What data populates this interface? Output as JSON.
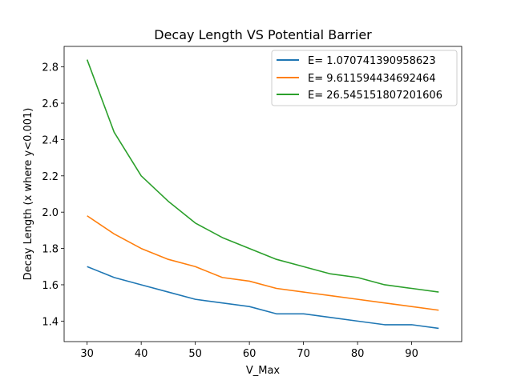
{
  "chart_data": {
    "type": "line",
    "title": "Decay Length VS Potential Barrier",
    "xlabel": "V_Max",
    "ylabel": "Decay Length (x where y<0.001)",
    "x": [
      30,
      35,
      40,
      45,
      50,
      55,
      60,
      65,
      70,
      75,
      80,
      85,
      90,
      95
    ],
    "xlim": [
      25.75,
      99.25
    ],
    "ylim": [
      1.287,
      2.913
    ],
    "xticks": [
      30,
      40,
      50,
      60,
      70,
      80,
      90
    ],
    "yticks": [
      1.4,
      1.6,
      1.8,
      2.0,
      2.2,
      2.4,
      2.6,
      2.8
    ],
    "ytick_labels": [
      "1.4",
      "1.6",
      "1.8",
      "2.0",
      "2.2",
      "2.4",
      "2.6",
      "2.8"
    ],
    "grid": false,
    "legend_position": "top-right",
    "series": [
      {
        "name": "E= 1.070741390958623",
        "color": "#1f77b4",
        "values": [
          1.7,
          1.64,
          1.6,
          1.56,
          1.52,
          1.5,
          1.48,
          1.44,
          1.44,
          1.42,
          1.4,
          1.38,
          1.38,
          1.36
        ]
      },
      {
        "name": "E= 9.611594434692464",
        "color": "#ff7f0e",
        "values": [
          1.98,
          1.88,
          1.8,
          1.74,
          1.7,
          1.64,
          1.62,
          1.58,
          1.56,
          1.54,
          1.52,
          1.5,
          1.48,
          1.46
        ]
      },
      {
        "name": "E= 26.545151807201606",
        "color": "#2ca02c",
        "values": [
          2.84,
          2.44,
          2.2,
          2.06,
          1.94,
          1.86,
          1.8,
          1.74,
          1.7,
          1.66,
          1.64,
          1.6,
          1.58,
          1.56
        ]
      }
    ]
  }
}
